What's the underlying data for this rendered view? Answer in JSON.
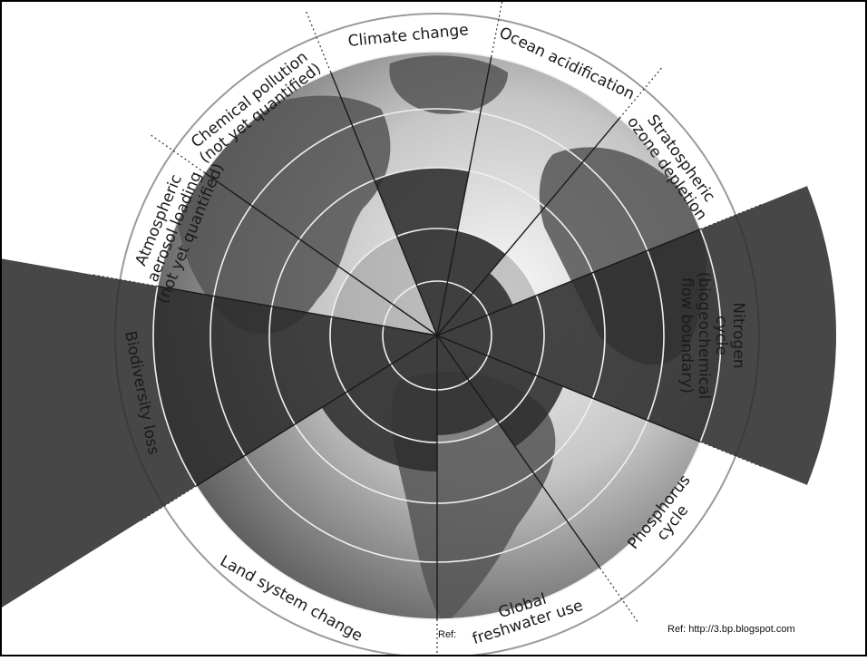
{
  "diagram": {
    "boundaries": [
      {
        "id": "climate",
        "label_lines": [
          "Climate change"
        ]
      },
      {
        "id": "ocean",
        "label_lines": [
          "Ocean acidification"
        ]
      },
      {
        "id": "ozone",
        "label_lines": [
          "Stratospheric",
          "ozone depletion"
        ]
      },
      {
        "id": "nitrogen",
        "label_lines": [
          "Nitrogen",
          "cycle",
          "(biogeochemical",
          "flow boundary)"
        ]
      },
      {
        "id": "phosphorus",
        "label_lines": [
          "Phosphorus",
          "cycle"
        ]
      },
      {
        "id": "freshwater",
        "label_lines": [
          "Global",
          "freshwater use"
        ]
      },
      {
        "id": "land",
        "label_lines": [
          "Land system change"
        ]
      },
      {
        "id": "biodiversity",
        "label_lines": [
          "Biodiversity loss"
        ]
      },
      {
        "id": "aerosol",
        "label_lines": [
          "Atmospheric",
          "aerosol loading",
          "(not yet quantified)"
        ]
      },
      {
        "id": "chemical",
        "label_lines": [
          "Chemical pollution",
          "(not yet quantified)"
        ]
      }
    ]
  },
  "refs": {
    "left": "Ref:",
    "right": "Ref: http://3.bp.blogspot.com"
  },
  "colors": {
    "wedge": "#2e2e2e",
    "ocean_light": "#e8e8e8",
    "ocean_dark": "#5a5a5a",
    "safe_zone": "#9a9a9a",
    "frame": "#000000"
  }
}
